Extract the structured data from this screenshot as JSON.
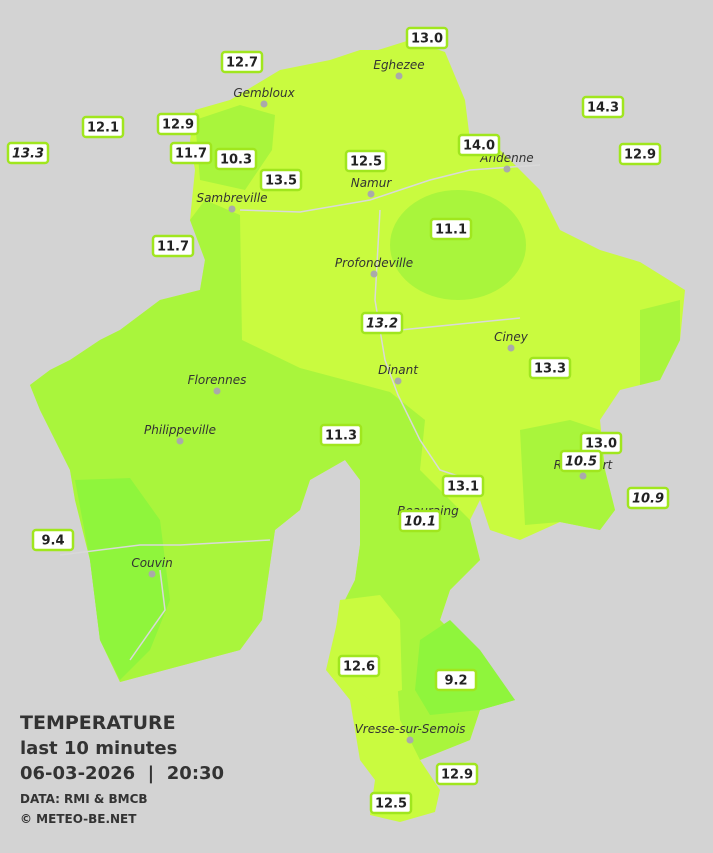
{
  "legend": {
    "title": "TEMPERATURE",
    "subtitle": "last 10 minutes",
    "datetime": "06-03-2026  |  20:30",
    "source": "DATA: RMI & BMCB",
    "copyright": "© METEO-BE.NET"
  },
  "cities": [
    "Eghezee",
    "Gembloux",
    "Andenne",
    "Namur",
    "Sambreville",
    "Profondeville",
    "Ciney",
    "Dinant",
    "Florennes",
    "Philippeville",
    "Beauraing",
    "Rochefort",
    "Couvin",
    "Vresse-sur-Semois"
  ],
  "stations": [
    "13.0",
    "12.7",
    "14.3",
    "12.1",
    "12.9",
    "13.3",
    "11.7",
    "10.3",
    "12.9",
    "14.0",
    "12.5",
    "13.5",
    "11.1",
    "11.7",
    "13.2",
    "13.3",
    "11.3",
    "13.0",
    "10.5",
    "13.1",
    "10.9",
    "10.1",
    "9.4",
    "12.6",
    "9.2",
    "12.9",
    "12.5"
  ]
}
